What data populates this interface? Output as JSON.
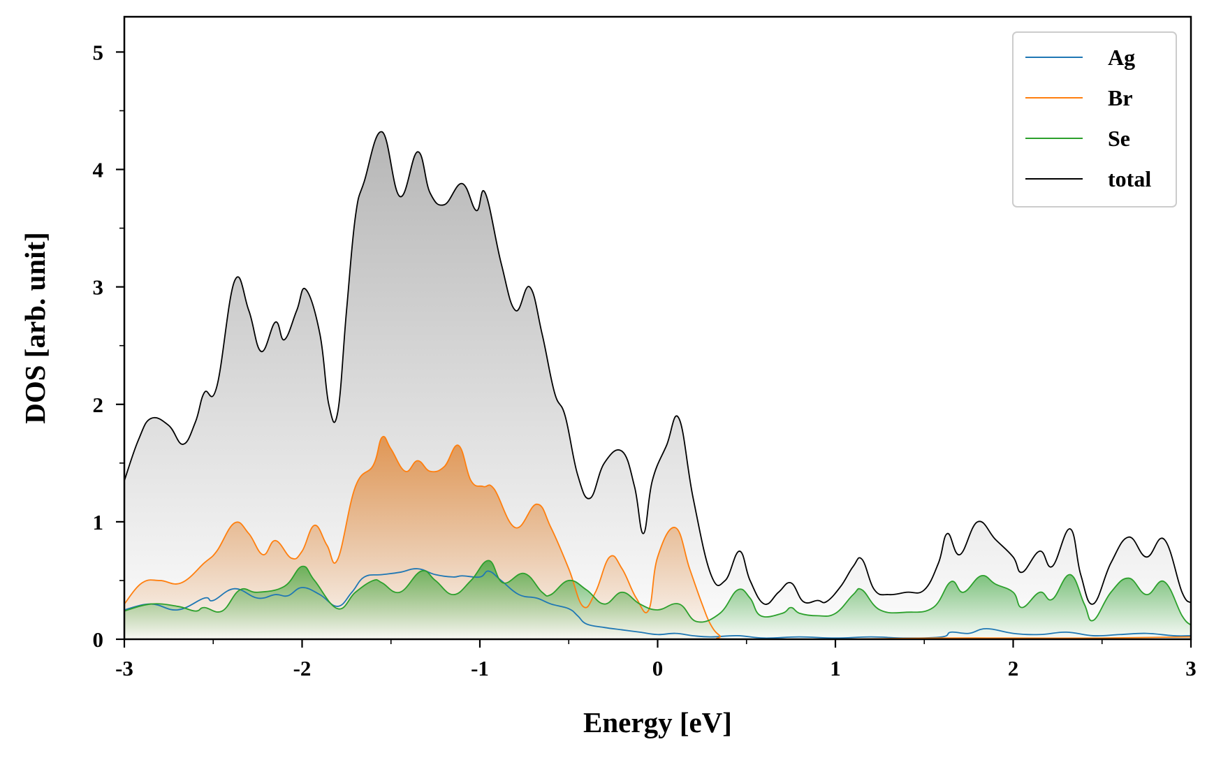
{
  "chart_data": {
    "type": "area",
    "title": "",
    "xlabel": "Energy [eV]",
    "ylabel": "DOS [arb. unit]",
    "xlim": [
      -3,
      3
    ],
    "ylim": [
      0,
      5.3
    ],
    "x_ticks": [
      -3,
      -2,
      -1,
      0,
      1,
      2,
      3
    ],
    "x_tick_labels": [
      "-3",
      "-2",
      "-1",
      "0",
      "1",
      "2",
      "3"
    ],
    "y_ticks": [
      0,
      1,
      2,
      3,
      4,
      5
    ],
    "y_tick_labels": [
      "0",
      "1",
      "2",
      "3",
      "4",
      "5"
    ],
    "grid": false,
    "legend_position": "top-right",
    "series": [
      {
        "name": "Ag",
        "color": "#1f77b4",
        "filled": false,
        "points": [
          [
            -3.0,
            0.25
          ],
          [
            -2.85,
            0.3
          ],
          [
            -2.7,
            0.25
          ],
          [
            -2.55,
            0.35
          ],
          [
            -2.5,
            0.33
          ],
          [
            -2.38,
            0.43
          ],
          [
            -2.25,
            0.35
          ],
          [
            -2.15,
            0.38
          ],
          [
            -2.08,
            0.37
          ],
          [
            -2.0,
            0.44
          ],
          [
            -1.9,
            0.38
          ],
          [
            -1.8,
            0.28
          ],
          [
            -1.72,
            0.4
          ],
          [
            -1.65,
            0.53
          ],
          [
            -1.55,
            0.55
          ],
          [
            -1.45,
            0.57
          ],
          [
            -1.35,
            0.6
          ],
          [
            -1.25,
            0.55
          ],
          [
            -1.15,
            0.53
          ],
          [
            -1.1,
            0.54
          ],
          [
            -1.0,
            0.53
          ],
          [
            -0.95,
            0.58
          ],
          [
            -0.88,
            0.5
          ],
          [
            -0.78,
            0.38
          ],
          [
            -0.68,
            0.35
          ],
          [
            -0.6,
            0.3
          ],
          [
            -0.5,
            0.26
          ],
          [
            -0.45,
            0.2
          ],
          [
            -0.4,
            0.13
          ],
          [
            -0.3,
            0.1
          ],
          [
            -0.2,
            0.08
          ],
          [
            -0.1,
            0.06
          ],
          [
            0.0,
            0.04
          ],
          [
            0.1,
            0.05
          ],
          [
            0.2,
            0.03
          ],
          [
            0.3,
            0.02
          ],
          [
            0.45,
            0.03
          ],
          [
            0.6,
            0.01
          ],
          [
            0.8,
            0.02
          ],
          [
            1.0,
            0.01
          ],
          [
            1.2,
            0.02
          ],
          [
            1.4,
            0.01
          ],
          [
            1.6,
            0.02
          ],
          [
            1.65,
            0.06
          ],
          [
            1.75,
            0.05
          ],
          [
            1.85,
            0.09
          ],
          [
            2.0,
            0.05
          ],
          [
            2.15,
            0.04
          ],
          [
            2.3,
            0.06
          ],
          [
            2.45,
            0.03
          ],
          [
            2.6,
            0.04
          ],
          [
            2.75,
            0.05
          ],
          [
            2.9,
            0.03
          ],
          [
            3.0,
            0.03
          ]
        ]
      },
      {
        "name": "Br",
        "color": "#ff7f0e",
        "filled": true,
        "points": [
          [
            -3.0,
            0.3
          ],
          [
            -2.9,
            0.48
          ],
          [
            -2.8,
            0.5
          ],
          [
            -2.68,
            0.48
          ],
          [
            -2.55,
            0.65
          ],
          [
            -2.48,
            0.75
          ],
          [
            -2.38,
            0.99
          ],
          [
            -2.3,
            0.9
          ],
          [
            -2.22,
            0.72
          ],
          [
            -2.15,
            0.84
          ],
          [
            -2.06,
            0.69
          ],
          [
            -2.0,
            0.75
          ],
          [
            -1.93,
            0.97
          ],
          [
            -1.86,
            0.8
          ],
          [
            -1.8,
            0.68
          ],
          [
            -1.7,
            1.3
          ],
          [
            -1.6,
            1.48
          ],
          [
            -1.55,
            1.72
          ],
          [
            -1.5,
            1.62
          ],
          [
            -1.42,
            1.43
          ],
          [
            -1.35,
            1.52
          ],
          [
            -1.28,
            1.43
          ],
          [
            -1.2,
            1.47
          ],
          [
            -1.12,
            1.65
          ],
          [
            -1.05,
            1.35
          ],
          [
            -0.98,
            1.3
          ],
          [
            -0.92,
            1.28
          ],
          [
            -0.8,
            0.95
          ],
          [
            -0.68,
            1.15
          ],
          [
            -0.6,
            0.95
          ],
          [
            -0.5,
            0.6
          ],
          [
            -0.42,
            0.28
          ],
          [
            -0.35,
            0.4
          ],
          [
            -0.27,
            0.7
          ],
          [
            -0.2,
            0.6
          ],
          [
            -0.12,
            0.35
          ],
          [
            -0.05,
            0.25
          ],
          [
            0.0,
            0.7
          ],
          [
            0.1,
            0.95
          ],
          [
            0.18,
            0.6
          ],
          [
            0.25,
            0.3
          ],
          [
            0.3,
            0.12
          ],
          [
            0.35,
            0.03
          ],
          [
            0.4,
            0.0
          ],
          [
            1.0,
            0.0
          ],
          [
            1.6,
            0.01
          ],
          [
            2.0,
            0.01
          ],
          [
            2.5,
            0.01
          ],
          [
            3.0,
            0.02
          ]
        ]
      },
      {
        "name": "Se",
        "color": "#2ca02c",
        "filled": true,
        "points": [
          [
            -3.0,
            0.24
          ],
          [
            -2.85,
            0.3
          ],
          [
            -2.7,
            0.28
          ],
          [
            -2.6,
            0.24
          ],
          [
            -2.55,
            0.27
          ],
          [
            -2.45,
            0.24
          ],
          [
            -2.35,
            0.42
          ],
          [
            -2.25,
            0.4
          ],
          [
            -2.1,
            0.45
          ],
          [
            -2.0,
            0.62
          ],
          [
            -1.93,
            0.5
          ],
          [
            -1.8,
            0.26
          ],
          [
            -1.7,
            0.4
          ],
          [
            -1.6,
            0.5
          ],
          [
            -1.55,
            0.48
          ],
          [
            -1.45,
            0.4
          ],
          [
            -1.33,
            0.58
          ],
          [
            -1.25,
            0.5
          ],
          [
            -1.15,
            0.38
          ],
          [
            -1.05,
            0.5
          ],
          [
            -0.95,
            0.67
          ],
          [
            -0.87,
            0.48
          ],
          [
            -0.75,
            0.56
          ],
          [
            -0.65,
            0.4
          ],
          [
            -0.6,
            0.38
          ],
          [
            -0.5,
            0.5
          ],
          [
            -0.4,
            0.42
          ],
          [
            -0.3,
            0.3
          ],
          [
            -0.2,
            0.4
          ],
          [
            -0.1,
            0.3
          ],
          [
            0.0,
            0.25
          ],
          [
            0.12,
            0.3
          ],
          [
            0.22,
            0.15
          ],
          [
            0.35,
            0.22
          ],
          [
            0.45,
            0.42
          ],
          [
            0.52,
            0.35
          ],
          [
            0.58,
            0.2
          ],
          [
            0.7,
            0.22
          ],
          [
            0.75,
            0.27
          ],
          [
            0.8,
            0.22
          ],
          [
            0.9,
            0.2
          ],
          [
            1.0,
            0.22
          ],
          [
            1.1,
            0.38
          ],
          [
            1.15,
            0.42
          ],
          [
            1.25,
            0.25
          ],
          [
            1.4,
            0.23
          ],
          [
            1.55,
            0.27
          ],
          [
            1.65,
            0.49
          ],
          [
            1.72,
            0.4
          ],
          [
            1.82,
            0.54
          ],
          [
            1.9,
            0.47
          ],
          [
            2.0,
            0.4
          ],
          [
            2.05,
            0.27
          ],
          [
            2.15,
            0.4
          ],
          [
            2.22,
            0.34
          ],
          [
            2.32,
            0.55
          ],
          [
            2.4,
            0.3
          ],
          [
            2.45,
            0.16
          ],
          [
            2.55,
            0.4
          ],
          [
            2.65,
            0.52
          ],
          [
            2.75,
            0.38
          ],
          [
            2.85,
            0.49
          ],
          [
            2.95,
            0.2
          ],
          [
            3.0,
            0.12
          ]
        ]
      },
      {
        "name": "total",
        "color": "#000000",
        "filled": true,
        "points": [
          [
            -3.0,
            1.35
          ],
          [
            -2.92,
            1.7
          ],
          [
            -2.85,
            1.88
          ],
          [
            -2.75,
            1.82
          ],
          [
            -2.67,
            1.66
          ],
          [
            -2.6,
            1.85
          ],
          [
            -2.55,
            2.1
          ],
          [
            -2.48,
            2.15
          ],
          [
            -2.38,
            3.05
          ],
          [
            -2.3,
            2.8
          ],
          [
            -2.23,
            2.45
          ],
          [
            -2.15,
            2.7
          ],
          [
            -2.1,
            2.55
          ],
          [
            -2.03,
            2.8
          ],
          [
            -1.98,
            2.98
          ],
          [
            -1.9,
            2.6
          ],
          [
            -1.85,
            2.0
          ],
          [
            -1.8,
            1.93
          ],
          [
            -1.75,
            2.8
          ],
          [
            -1.7,
            3.6
          ],
          [
            -1.65,
            3.9
          ],
          [
            -1.55,
            4.32
          ],
          [
            -1.45,
            3.77
          ],
          [
            -1.35,
            4.15
          ],
          [
            -1.28,
            3.8
          ],
          [
            -1.2,
            3.7
          ],
          [
            -1.1,
            3.88
          ],
          [
            -1.02,
            3.65
          ],
          [
            -0.97,
            3.8
          ],
          [
            -0.88,
            3.2
          ],
          [
            -0.8,
            2.8
          ],
          [
            -0.72,
            3.0
          ],
          [
            -0.65,
            2.6
          ],
          [
            -0.58,
            2.1
          ],
          [
            -0.52,
            1.9
          ],
          [
            -0.45,
            1.4
          ],
          [
            -0.38,
            1.2
          ],
          [
            -0.3,
            1.5
          ],
          [
            -0.2,
            1.6
          ],
          [
            -0.13,
            1.3
          ],
          [
            -0.08,
            0.9
          ],
          [
            -0.03,
            1.35
          ],
          [
            0.05,
            1.65
          ],
          [
            0.12,
            1.88
          ],
          [
            0.2,
            1.2
          ],
          [
            0.3,
            0.55
          ],
          [
            0.38,
            0.5
          ],
          [
            0.46,
            0.75
          ],
          [
            0.52,
            0.5
          ],
          [
            0.6,
            0.3
          ],
          [
            0.68,
            0.4
          ],
          [
            0.75,
            0.48
          ],
          [
            0.82,
            0.32
          ],
          [
            0.9,
            0.33
          ],
          [
            0.95,
            0.32
          ],
          [
            1.03,
            0.45
          ],
          [
            1.1,
            0.62
          ],
          [
            1.15,
            0.68
          ],
          [
            1.22,
            0.42
          ],
          [
            1.3,
            0.38
          ],
          [
            1.4,
            0.4
          ],
          [
            1.5,
            0.42
          ],
          [
            1.58,
            0.65
          ],
          [
            1.63,
            0.9
          ],
          [
            1.7,
            0.72
          ],
          [
            1.8,
            1.0
          ],
          [
            1.9,
            0.85
          ],
          [
            2.0,
            0.7
          ],
          [
            2.05,
            0.57
          ],
          [
            2.15,
            0.75
          ],
          [
            2.22,
            0.62
          ],
          [
            2.32,
            0.94
          ],
          [
            2.38,
            0.55
          ],
          [
            2.45,
            0.3
          ],
          [
            2.55,
            0.65
          ],
          [
            2.65,
            0.87
          ],
          [
            2.75,
            0.7
          ],
          [
            2.85,
            0.85
          ],
          [
            2.95,
            0.4
          ],
          [
            3.0,
            0.31
          ]
        ]
      }
    ]
  }
}
